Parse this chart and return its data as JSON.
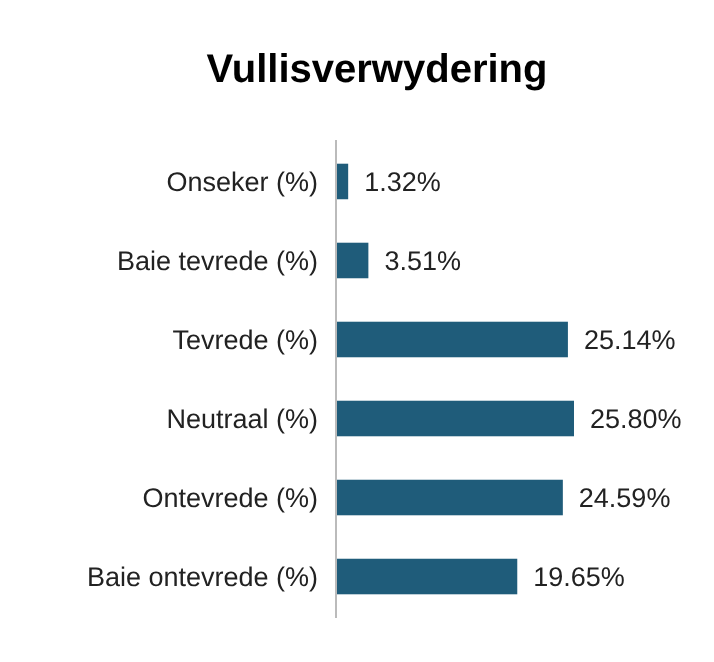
{
  "chart_data": {
    "type": "bar",
    "orientation": "horizontal",
    "title": "Vullisverwydering",
    "categories": [
      "Onseker (%)",
      "Baie tevrede (%)",
      "Tevrede (%)",
      "Neutraal (%)",
      "Ontevrede (%)",
      "Baie ontevrede (%)"
    ],
    "values": [
      1.32,
      3.51,
      25.14,
      25.8,
      24.59,
      19.65
    ],
    "color": "#1f5c7a",
    "data_labels": true,
    "value_labels": [
      "1.32%",
      "3.51%",
      "25.14%",
      "25.80%",
      "24.59%",
      "19.65%"
    ]
  }
}
